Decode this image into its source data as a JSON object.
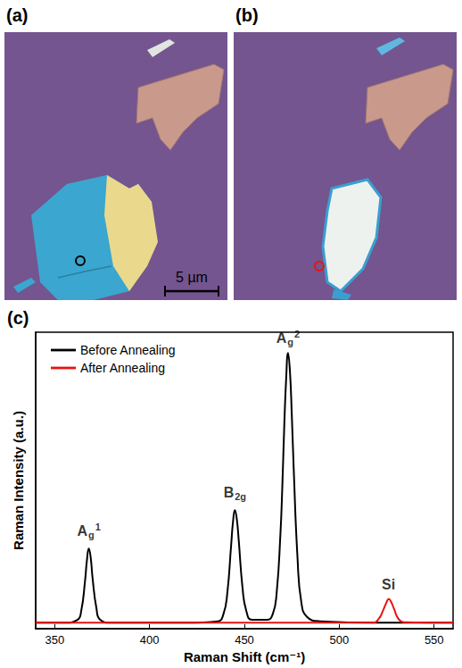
{
  "micrographs": [
    {
      "label": "(a)",
      "scale_bar": "5 µm",
      "color": "#000000"
    },
    {
      "label": "(b)",
      "color": "#e8130f"
    }
  ],
  "chart_data": {
    "label": "(c)",
    "type": "line",
    "x_label": "Raman Shift (cm⁻¹)",
    "y_label": "Raman Intensity (a.u.)",
    "xlim": [
      340,
      560
    ],
    "xticks": [
      350,
      400,
      450,
      500,
      550
    ],
    "ylim": [
      0,
      1
    ],
    "tick_labels": "x",
    "grid": false,
    "legend": "top-left",
    "series": [
      {
        "name": "Before Annealing",
        "color": "#000000",
        "x": [
          340,
          355,
          362,
          364,
          366,
          367,
          368,
          369,
          370,
          372,
          374,
          380,
          420,
          436,
          439,
          441,
          443,
          444,
          445,
          446,
          447,
          449,
          451,
          454,
          462,
          465,
          467,
          469,
          470,
          471,
          472,
          473,
          474,
          475,
          476,
          478,
          480,
          483,
          490,
          520,
          560
        ],
        "values": [
          0.02,
          0.02,
          0.03,
          0.06,
          0.16,
          0.23,
          0.27,
          0.24,
          0.17,
          0.07,
          0.03,
          0.02,
          0.02,
          0.025,
          0.05,
          0.12,
          0.28,
          0.36,
          0.4,
          0.37,
          0.3,
          0.14,
          0.06,
          0.03,
          0.03,
          0.05,
          0.12,
          0.32,
          0.48,
          0.68,
          0.84,
          0.93,
          0.87,
          0.72,
          0.54,
          0.24,
          0.09,
          0.04,
          0.025,
          0.02,
          0.02
        ]
      },
      {
        "name": "After Annealing",
        "color": "#e8130f",
        "x": [
          340,
          400,
          500,
          518,
          521,
          523,
          525,
          526,
          527,
          529,
          531,
          534,
          560
        ],
        "values": [
          0.02,
          0.02,
          0.02,
          0.02,
          0.035,
          0.06,
          0.09,
          0.1,
          0.095,
          0.065,
          0.035,
          0.022,
          0.02
        ]
      }
    ],
    "annotations": [
      {
        "text": "A",
        "sub": "g",
        "sup": "1",
        "x": 368,
        "y": 0.33
      },
      {
        "text": "B",
        "sub": "2g",
        "x": 445,
        "y": 0.46
      },
      {
        "text": "A",
        "sub": "g",
        "sup": "2",
        "x": 473,
        "y": 0.98
      },
      {
        "text": "Si",
        "x": 526,
        "y": 0.15
      }
    ]
  }
}
